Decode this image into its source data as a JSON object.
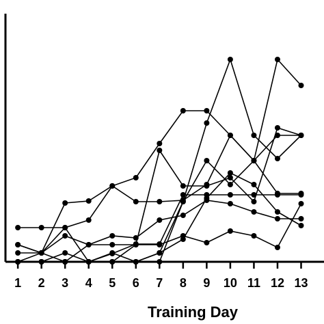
{
  "chart_data": {
    "type": "line",
    "x_label": "Training Day",
    "color": "#000000",
    "x": [
      1,
      2,
      3,
      4,
      5,
      6,
      7,
      8,
      9,
      10,
      11,
      12,
      13
    ],
    "xlim": [
      0.475,
      13.97
    ],
    "xticks": [
      1,
      2,
      3,
      4,
      5,
      6,
      7,
      8,
      9,
      10,
      11,
      12,
      13
    ],
    "ylim": [
      0,
      363
    ],
    "series": [
      {
        "values": [
          50,
          50,
          50,
          0,
          12,
          26,
          26,
          98,
          98,
          98,
          98,
          98,
          98
        ]
      },
      {
        "values": [
          25,
          13,
          86,
          89,
          111,
          88,
          88,
          90,
          113,
          185,
          148,
          185,
          185
        ]
      },
      {
        "values": [
          0,
          0,
          0,
          0,
          0,
          0,
          13,
          88,
          203,
          296,
          185,
          151,
          185
        ]
      },
      {
        "values": [
          0,
          0,
          0,
          0,
          0,
          0,
          0,
          88,
          148,
          113,
          148,
          296,
          258
        ]
      },
      {
        "values": [
          0,
          0,
          13,
          0,
          0,
          25,
          163,
          111,
          111,
          123,
          88,
          196,
          185
        ]
      },
      {
        "values": [
          25,
          13,
          38,
          25,
          25,
          25,
          25,
          38,
          28,
          45,
          38,
          21,
          85
        ]
      },
      {
        "values": [
          0,
          0,
          0,
          25,
          38,
          35,
          61,
          68,
          90,
          85,
          73,
          63,
          63
        ]
      },
      {
        "values": [
          13,
          13,
          0,
          0,
          13,
          0,
          13,
          33,
          93,
          130,
          113,
          73,
          53
        ]
      },
      {
        "values": [
          0,
          13,
          50,
          61,
          111,
          123,
          173,
          221,
          221,
          185,
          148,
          100,
          100
        ]
      }
    ]
  }
}
